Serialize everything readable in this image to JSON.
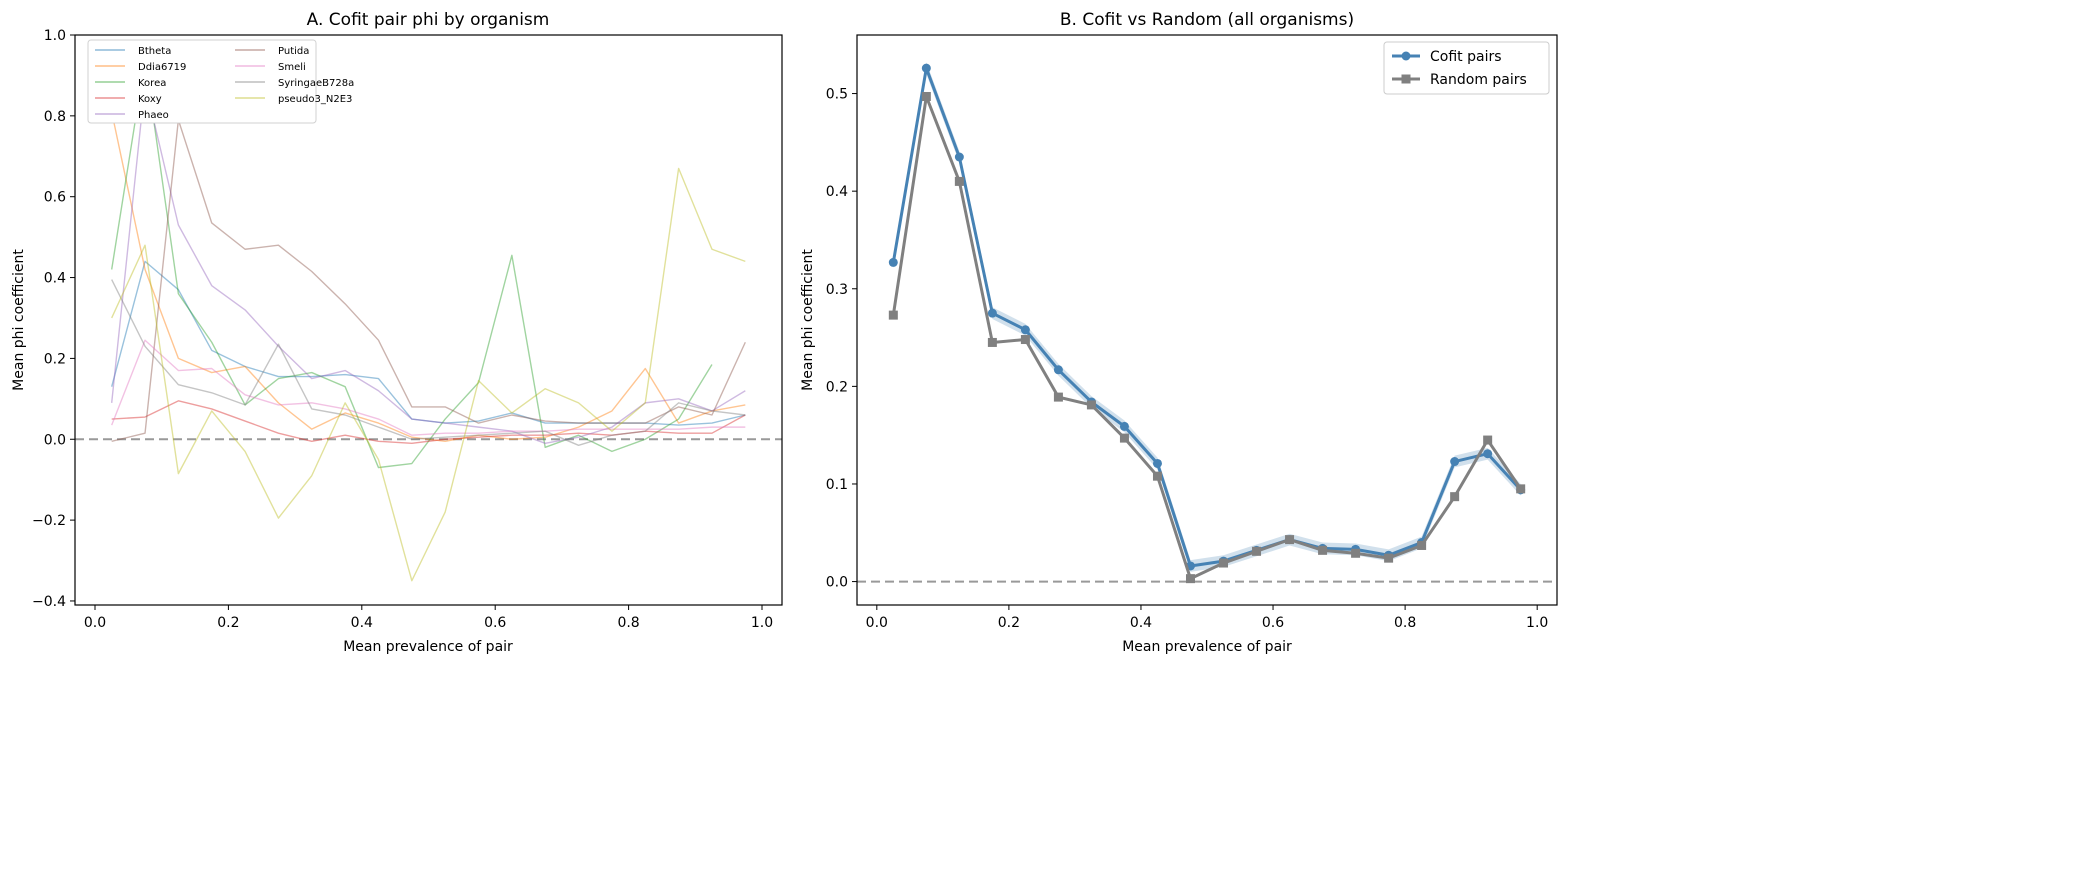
{
  "chart_data": [
    {
      "type": "line",
      "title": "A. Cofit pair phi by organism",
      "xlabel": "Mean prevalence of pair",
      "ylabel": "Mean phi coefficient",
      "xlim": [
        -0.03,
        1.03
      ],
      "ylim": [
        -0.41,
        1.0
      ],
      "xticks": [
        "0.0",
        "0.2",
        "0.4",
        "0.6",
        "0.8",
        "1.0"
      ],
      "yticks": [
        "−0.4",
        "−0.2",
        "0.0",
        "0.2",
        "0.4",
        "0.6",
        "0.8",
        "1.0"
      ],
      "reference_line": 0.0,
      "legend_position": "top-left",
      "x": [
        0.025,
        0.075,
        0.125,
        0.175,
        0.225,
        0.275,
        0.325,
        0.375,
        0.425,
        0.475,
        0.525,
        0.575,
        0.625,
        0.675,
        0.725,
        0.775,
        0.825,
        0.875,
        0.925,
        0.975
      ],
      "series": [
        {
          "name": "Btheta",
          "color": "#1f77b4",
          "values": [
            0.13,
            0.44,
            0.37,
            0.22,
            0.18,
            0.155,
            0.155,
            0.16,
            0.15,
            0.05,
            0.04,
            0.045,
            0.065,
            0.04,
            0.04,
            0.04,
            0.04,
            0.035,
            0.04,
            0.06
          ]
        },
        {
          "name": "Ddia6719",
          "color": "#ff7f0e",
          "values": [
            0.81,
            0.42,
            0.2,
            0.165,
            0.18,
            0.09,
            0.025,
            0.065,
            0.04,
            0.005,
            -0.005,
            0.01,
            0.0,
            0.005,
            0.03,
            0.07,
            0.175,
            0.04,
            0.07,
            0.085
          ]
        },
        {
          "name": "Korea",
          "color": "#2ca02c",
          "values": [
            0.42,
            0.94,
            0.36,
            0.24,
            0.085,
            0.15,
            0.165,
            0.13,
            -0.07,
            -0.06,
            0.05,
            0.14,
            0.455,
            -0.02,
            0.01,
            -0.03,
            0.0,
            0.05,
            0.185,
            null
          ]
        },
        {
          "name": "Koxy",
          "color": "#d62728",
          "values": [
            0.05,
            0.055,
            0.095,
            0.075,
            0.045,
            0.015,
            -0.005,
            0.01,
            -0.005,
            -0.01,
            0.0,
            0.005,
            0.01,
            0.01,
            0.015,
            0.01,
            0.02,
            0.015,
            0.015,
            0.06
          ]
        },
        {
          "name": "Phaeo",
          "color": "#9467bd",
          "values": [
            0.09,
            0.88,
            0.53,
            0.38,
            0.32,
            0.23,
            0.15,
            0.17,
            0.12,
            0.05,
            0.04,
            0.03,
            0.02,
            -0.01,
            0.005,
            0.03,
            0.09,
            0.1,
            0.07,
            0.12
          ]
        },
        {
          "name": "Putida",
          "color": "#8c564b",
          "values": [
            -0.005,
            0.015,
            0.79,
            0.535,
            0.47,
            0.48,
            0.415,
            0.335,
            0.245,
            0.08,
            0.08,
            0.04,
            0.06,
            0.045,
            0.04,
            0.04,
            0.04,
            0.08,
            0.06,
            0.24
          ]
        },
        {
          "name": "Smeli",
          "color": "#e377c2",
          "values": [
            0.035,
            0.245,
            0.17,
            0.175,
            0.11,
            0.085,
            0.09,
            0.075,
            0.05,
            0.01,
            0.015,
            0.015,
            0.02,
            0.02,
            0.025,
            0.025,
            0.025,
            0.025,
            0.03,
            0.03
          ]
        },
        {
          "name": "SyringaeB728a",
          "color": "#7f7f7f",
          "values": [
            0.395,
            0.23,
            0.135,
            0.115,
            0.085,
            0.235,
            0.075,
            0.06,
            0.03,
            0.0,
            0.005,
            0.01,
            0.015,
            0.02,
            -0.015,
            0.01,
            0.02,
            0.09,
            0.07,
            0.06
          ]
        },
        {
          "name": "pseudo3_N2E3",
          "color": "#bcbd22",
          "values": [
            0.3,
            0.48,
            -0.085,
            0.07,
            -0.03,
            -0.195,
            -0.09,
            0.09,
            -0.05,
            -0.35,
            -0.18,
            0.145,
            0.065,
            0.125,
            0.09,
            0.02,
            0.09,
            0.67,
            0.47,
            0.44
          ]
        }
      ]
    },
    {
      "type": "line",
      "title": "B. Cofit vs Random (all organisms)",
      "xlabel": "Mean prevalence of pair",
      "ylabel": "Mean phi coefficient",
      "xlim": [
        -0.03,
        1.03
      ],
      "ylim": [
        -0.024,
        0.56
      ],
      "xticks": [
        "0.0",
        "0.2",
        "0.4",
        "0.6",
        "0.8",
        "1.0"
      ],
      "yticks": [
        "0.0",
        "0.1",
        "0.2",
        "0.3",
        "0.4",
        "0.5"
      ],
      "reference_line": 0.0,
      "legend_position": "top-right",
      "x": [
        0.025,
        0.075,
        0.125,
        0.175,
        0.225,
        0.275,
        0.325,
        0.375,
        0.425,
        0.475,
        0.525,
        0.575,
        0.625,
        0.675,
        0.725,
        0.775,
        0.825,
        0.875,
        0.925,
        0.975
      ],
      "series": [
        {
          "name": "Cofit pairs",
          "color": "#4682b4",
          "marker": "circle",
          "values": [
            0.327,
            0.526,
            0.435,
            0.275,
            0.258,
            0.217,
            0.184,
            0.159,
            0.121,
            0.016,
            0.021,
            0.032,
            0.043,
            0.034,
            0.033,
            0.027,
            0.04,
            0.123,
            0.131,
            0.094
          ]
        },
        {
          "name": "Random pairs",
          "color": "#808080",
          "marker": "square",
          "values": [
            0.273,
            0.497,
            0.41,
            0.245,
            0.248,
            0.189,
            0.181,
            0.147,
            0.108,
            0.003,
            0.019,
            0.031,
            0.043,
            0.032,
            0.029,
            0.024,
            0.037,
            0.087,
            0.145,
            0.095
          ]
        }
      ]
    }
  ]
}
